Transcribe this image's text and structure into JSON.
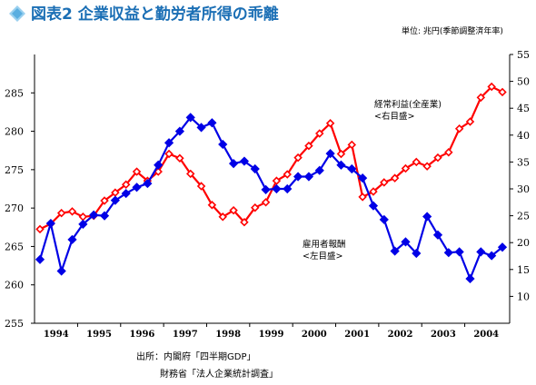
{
  "title": "図表2 企業収益と勤労者所得の乖離",
  "unit": "単位: 兆円(季節調整済年率)",
  "source_line1": "出所：内閣府「四半期GDP」",
  "source_line2": "財務省「法人企業統計調査」",
  "colors": {
    "profit": "#ff0000",
    "wages": "#0000e6",
    "title": "#1b6fb5",
    "axis": "#000000"
  },
  "chart_data": {
    "type": "line",
    "x_labels": [
      "1994",
      "1995",
      "1996",
      "1997",
      "1998",
      "1999",
      "2000",
      "2001",
      "2002",
      "2003",
      "2004"
    ],
    "x_note": "quarterly observations, 1994 Q1 – 2004 Q4",
    "left_axis": {
      "ticks": [
        255,
        260,
        265,
        270,
        275,
        280,
        285
      ],
      "ylim": [
        255,
        290
      ]
    },
    "right_axis": {
      "ticks": [
        10,
        15,
        20,
        25,
        30,
        35,
        40,
        45,
        50,
        55
      ],
      "ylim": [
        5,
        55
      ]
    },
    "grid": false,
    "series": [
      {
        "name_lines": [
          "経常利益(全産業)",
          "<右目盛>"
        ],
        "axis": "right",
        "color": "#ff0000",
        "marker": "diamond",
        "values": [
          22.5,
          23.5,
          25.5,
          25.8,
          24.8,
          25.0,
          27.8,
          29.3,
          30.8,
          33.2,
          31.5,
          33.2,
          36.5,
          35.7,
          32.8,
          30.5,
          27.0,
          24.8,
          26.0,
          23.8,
          26.5,
          27.5,
          31.5,
          32.7,
          35.8,
          38.0,
          40.3,
          42.2,
          36.5,
          38.2,
          28.5,
          29.5,
          31.2,
          32.0,
          33.8,
          35.0,
          34.2,
          35.8,
          36.8,
          41.2,
          42.5,
          47.0,
          49.0,
          48.0
        ]
      },
      {
        "name_lines": [
          "雇用者報酬",
          "<左目盛>"
        ],
        "axis": "left",
        "color": "#0000e6",
        "marker": "diamond",
        "values": [
          263.3,
          268.0,
          261.8,
          265.9,
          267.9,
          269.1,
          269.0,
          271.0,
          271.9,
          272.7,
          273.2,
          275.6,
          278.5,
          280.0,
          281.8,
          280.5,
          281.1,
          278.3,
          275.8,
          276.1,
          275.1,
          272.4,
          272.5,
          272.5,
          274.1,
          274.1,
          274.9,
          277.1,
          275.6,
          275.1,
          273.9,
          270.3,
          268.5,
          264.4,
          265.6,
          264.1,
          268.9,
          266.5,
          264.2,
          264.3,
          260.8,
          264.3,
          263.8,
          264.9
        ]
      }
    ]
  }
}
